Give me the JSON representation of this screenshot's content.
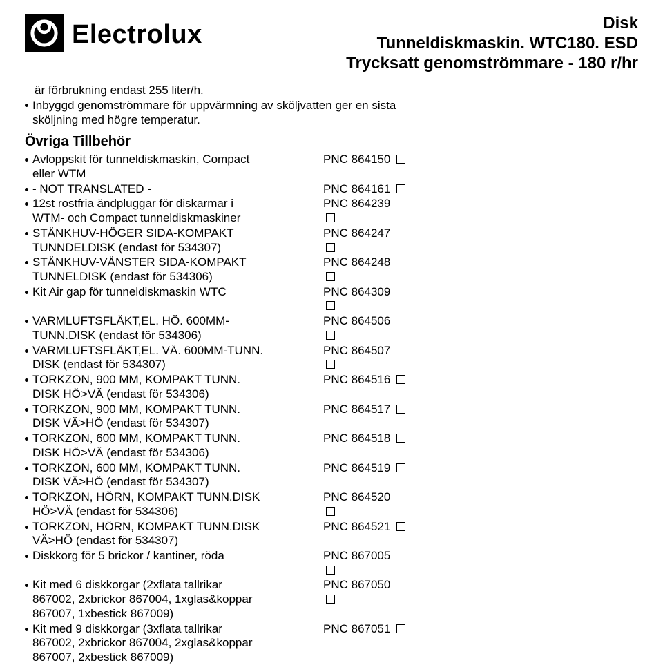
{
  "brand": {
    "name": "Electrolux"
  },
  "doc_title": {
    "line1": "Disk",
    "line2": "Tunneldiskmaskin. WTC180. ESD",
    "line3": "Trycksatt genomströmmare - 180 r/hr"
  },
  "intro": {
    "line1": "är förbrukning endast 255 liter/h.",
    "bullet": "Inbyggd genomströmmare för uppvärmning av sköljvatten ger en sista sköljning med högre temperatur."
  },
  "section_title": "Övriga Tillbehör",
  "items": [
    {
      "left_l1": "Avloppskit för tunneldiskmaskin, Compact",
      "left_l2": "eller WTM",
      "right_l1": "PNC 864150",
      "box_l1": true
    },
    {
      "left_l1": "- NOT TRANSLATED -",
      "right_l1": "PNC 864161",
      "box_l1": true
    },
    {
      "left_l1": "12st rostfria ändpluggar för diskarmar i",
      "left_l2": "WTM- och Compact tunneldiskmaskiner",
      "right_l1": "PNC 864239",
      "box_l2": true
    },
    {
      "left_l1": "STÄNKHUV-HÖGER SIDA-KOMPAKT",
      "left_l2": "TUNNDELDISK (endast för 534307)",
      "right_l1": "PNC 864247",
      "box_l2": true
    },
    {
      "left_l1": "STÄNKHUV-VÄNSTER SIDA-KOMPAKT",
      "left_l2": "TUNNELDISK (endast för 534306)",
      "right_l1": "PNC 864248",
      "box_l2": true
    },
    {
      "left_l1": "Kit Air gap för tunneldiskmaskin WTC",
      "right_l1": "PNC 864309",
      "box_l2": true
    },
    {
      "left_l1": "VARMLUFTSFLÄKT,EL. HÖ. 600MM-",
      "left_l2": "TUNN.DISK (endast för 534306)",
      "right_l1": "PNC 864506",
      "box_l2": true
    },
    {
      "left_l1": "VARMLUFTSFLÄKT,EL. VÄ. 600MM-TUNN.",
      "left_l2": "DISK (endast för 534307)",
      "right_l1": "PNC 864507",
      "box_l2": true
    },
    {
      "left_l1": "TORKZON, 900 MM, KOMPAKT TUNN.",
      "left_l2": "DISK HÖ>VÄ (endast för 534306)",
      "right_l1": "PNC 864516",
      "box_l1": true
    },
    {
      "left_l1": "TORKZON, 900 MM, KOMPAKT TUNN.",
      "left_l2": "DISK VÄ>HÖ (endast för 534307)",
      "right_l1": "PNC 864517",
      "box_l1": true
    },
    {
      "left_l1": "TORKZON, 600 MM, KOMPAKT TUNN.",
      "left_l2": "DISK HÖ>VÄ (endast för 534306)",
      "right_l1": "PNC 864518",
      "box_l1": true
    },
    {
      "left_l1": "TORKZON, 600 MM, KOMPAKT TUNN.",
      "left_l2": "DISK VÄ>HÖ (endast för 534307)",
      "right_l1": "PNC 864519",
      "box_l1": true
    },
    {
      "left_l1": "TORKZON, HÖRN, KOMPAKT TUNN.DISK",
      "left_l2": "HÖ>VÄ (endast för 534306)",
      "right_l1": "PNC 864520",
      "box_l2": true
    },
    {
      "left_l1": "TORKZON, HÖRN, KOMPAKT TUNN.DISK",
      "left_l2": "VÄ>HÖ (endast för 534307)",
      "right_l1": "PNC 864521",
      "box_l1": true
    },
    {
      "left_l1": "Diskkorg för 5 brickor / kantiner, röda",
      "right_l1": "PNC 867005",
      "box_l2": true
    },
    {
      "left_l1": "Kit med 6 diskkorgar (2xflata tallrikar",
      "left_l2": "867002, 2xbrickor 867004, 1xglas&koppar",
      "left_l3": "867007, 1xbestick 867009)",
      "right_l1": "PNC 867050",
      "box_l2": true
    },
    {
      "left_l1": "Kit med 9 diskkorgar (3xflata tallrikar",
      "left_l2": "867002, 2xbrickor 867004, 2xglas&koppar",
      "left_l3": "867007, 2xbestick 867009)",
      "right_l1": "PNC 867051",
      "box_l1": true
    }
  ]
}
